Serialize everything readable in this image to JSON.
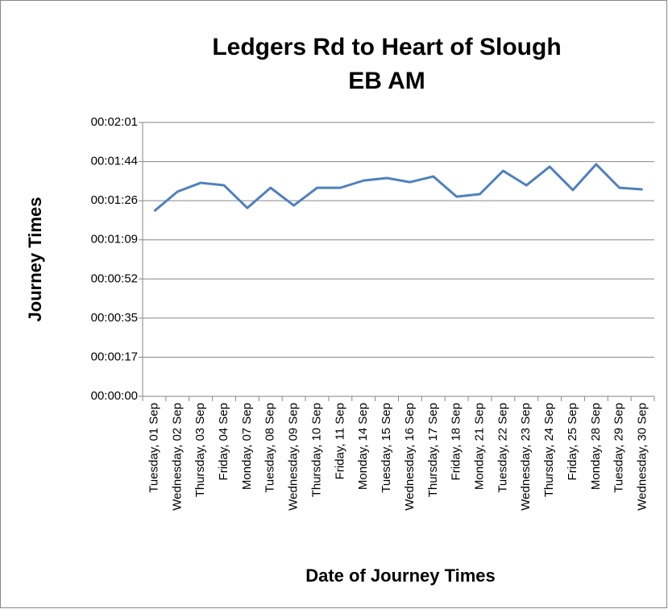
{
  "chart_data": {
    "type": "line",
    "title": [
      "Ledgers Rd to Heart of Slough",
      "EB AM"
    ],
    "x_label": "Date of Journey Times",
    "y_label": "Journey Times",
    "categories": [
      "Tuesday, 01 Sep",
      "Wednesday, 02 Sep",
      "Thursday, 03 Sep",
      "Friday, 04 Sep",
      "Monday, 07 Sep",
      "Tuesday, 08 Sep",
      "Wednesday, 09 Sep",
      "Thursday, 10 Sep",
      "Friday, 11 Sep",
      "Monday, 14 Sep",
      "Tuesday, 15 Sep",
      "Wednesday, 16 Sep",
      "Thursday, 17 Sep",
      "Friday, 18 Sep",
      "Monday, 21 Sep",
      "Tuesday, 22 Sep",
      "Wednesday, 23 Sep",
      "Thursday, 24 Sep",
      "Friday, 25 Sep",
      "Monday, 28 Sep",
      "Tuesday, 29 Sep",
      "Wednesday, 30 Sep"
    ],
    "series": [
      {
        "name": "Journey Times",
        "color": "#4f81bd",
        "values": [
          81.8,
          90.4,
          94.3,
          93.2,
          83.2,
          92.1,
          84.3,
          92.1,
          92.1,
          95.3,
          96.4,
          94.6,
          97.1,
          88.2,
          89.3,
          99.6,
          93.2,
          101.4,
          91.1,
          102.5,
          92.1,
          91.4
        ]
      }
    ],
    "ylim": [
      0,
      120.96
    ],
    "yticks": [
      {
        "value": 0,
        "label": "00:00:00"
      },
      {
        "value": 17.28,
        "label": "00:00:17"
      },
      {
        "value": 34.56,
        "label": "00:00:35"
      },
      {
        "value": 51.84,
        "label": "00:00:52"
      },
      {
        "value": 69.12,
        "label": "00:01:09"
      },
      {
        "value": 86.4,
        "label": "00:01:26"
      },
      {
        "value": 103.68,
        "label": "00:01:44"
      },
      {
        "value": 120.96,
        "label": "00:02:01"
      }
    ],
    "grid": true
  }
}
